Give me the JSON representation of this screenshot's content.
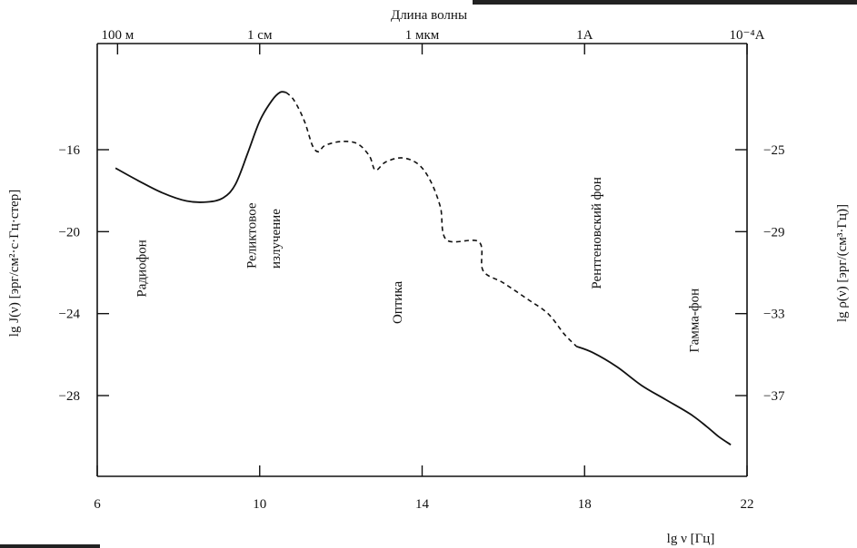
{
  "chart_data": {
    "type": "line",
    "title": "",
    "xlabel": "lg ν [Гц]",
    "xlim": [
      6,
      22
    ],
    "x_ticks": [
      6,
      10,
      14,
      18,
      22
    ],
    "ylabel_left": "lg J(ν) [эрг/см²·с·Гц·стер]",
    "ylim_left": [
      -32,
      -12
    ],
    "y_ticks_left": [
      -16,
      -20,
      -24,
      -28
    ],
    "ylabel_right": "lg ρ(ν) [эрг/(см³·Гц)]",
    "y_ticks_right": [
      -25,
      -29,
      -33,
      -37
    ],
    "top_axis_title": "Длина волны",
    "top_axis_ticks": [
      {
        "label": "100 м",
        "x": 6.5
      },
      {
        "label": "1 см",
        "x": 10.0
      },
      {
        "label": "1 мкм",
        "x": 14.0
      },
      {
        "label": "1A",
        "x": 18.0
      },
      {
        "label": "10⁻⁴A",
        "x": 22.0
      }
    ],
    "grid": false,
    "legend": "none",
    "series": [
      {
        "style": "solid",
        "points": [
          [
            6.45,
            -16.9
          ],
          [
            7.0,
            -17.5
          ],
          [
            7.6,
            -18.1
          ],
          [
            8.2,
            -18.5
          ],
          [
            8.7,
            -18.55
          ],
          [
            9.1,
            -18.35
          ],
          [
            9.4,
            -17.7
          ],
          [
            9.7,
            -16.2
          ],
          [
            10.0,
            -14.6
          ],
          [
            10.3,
            -13.6
          ],
          [
            10.5,
            -13.2
          ],
          [
            10.65,
            -13.2
          ]
        ]
      },
      {
        "style": "dashed",
        "points": [
          [
            10.65,
            -13.2
          ],
          [
            10.85,
            -13.6
          ],
          [
            11.1,
            -14.6
          ],
          [
            11.3,
            -15.8
          ],
          [
            11.45,
            -16.1
          ],
          [
            11.6,
            -15.8
          ],
          [
            12.0,
            -15.6
          ],
          [
            12.4,
            -15.7
          ],
          [
            12.7,
            -16.3
          ],
          [
            12.85,
            -17.0
          ],
          [
            13.1,
            -16.6
          ],
          [
            13.5,
            -16.4
          ],
          [
            13.9,
            -16.7
          ],
          [
            14.2,
            -17.5
          ],
          [
            14.45,
            -18.8
          ],
          [
            14.6,
            -20.4
          ],
          [
            15.4,
            -20.5
          ],
          [
            15.5,
            -21.9
          ],
          [
            16.0,
            -22.5
          ],
          [
            16.6,
            -23.3
          ],
          [
            17.1,
            -24.0
          ],
          [
            17.5,
            -25.0
          ],
          [
            17.8,
            -25.6
          ]
        ]
      },
      {
        "style": "solid",
        "points": [
          [
            17.8,
            -25.6
          ],
          [
            18.2,
            -25.9
          ],
          [
            18.8,
            -26.6
          ],
          [
            19.4,
            -27.5
          ],
          [
            20.0,
            -28.2
          ],
          [
            20.6,
            -28.9
          ],
          [
            21.0,
            -29.5
          ],
          [
            21.3,
            -30.0
          ],
          [
            21.6,
            -30.4
          ]
        ]
      }
    ],
    "region_labels": [
      {
        "text": "Радиофон",
        "x": 7.2,
        "y": -23.2
      },
      {
        "text": "Реликтовое",
        "x": 9.9,
        "y": -21.8
      },
      {
        "text": "излучение",
        "x": 10.5,
        "y": -21.8
      },
      {
        "text": "Оптика",
        "x": 13.5,
        "y": -24.5
      },
      {
        "text": "Рентгеновский фон",
        "x": 18.4,
        "y": -22.8
      },
      {
        "text": "Гамма-фон",
        "x": 20.8,
        "y": -25.9
      }
    ]
  }
}
